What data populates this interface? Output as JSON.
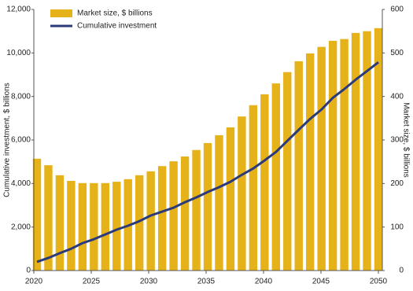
{
  "chart_data": {
    "type": "bar_line",
    "x": [
      2020,
      2021,
      2022,
      2023,
      2024,
      2025,
      2026,
      2027,
      2028,
      2029,
      2030,
      2031,
      2032,
      2033,
      2034,
      2035,
      2036,
      2037,
      2038,
      2039,
      2040,
      2041,
      2042,
      2043,
      2044,
      2045,
      2046,
      2047,
      2048,
      2049,
      2050
    ],
    "series": [
      {
        "name": "Market size, $ billions",
        "type": "bar",
        "axis": "y2",
        "color": "#e6b219",
        "values": [
          257,
          242,
          219,
          206,
          201,
          201,
          201,
          204,
          210,
          219,
          228,
          240,
          251,
          262,
          277,
          293,
          311,
          329,
          354,
          380,
          405,
          430,
          456,
          481,
          499,
          514,
          528,
          532,
          546,
          550,
          557
        ]
      },
      {
        "name": "Cumulative investment",
        "type": "line",
        "axis": "y",
        "color": "#2b3a7a",
        "values": [
          400,
          580,
          800,
          1000,
          1260,
          1440,
          1660,
          1880,
          2060,
          2270,
          2530,
          2710,
          2890,
          3140,
          3360,
          3610,
          3830,
          4080,
          4400,
          4690,
          5060,
          5450,
          5960,
          6470,
          6970,
          7400,
          7940,
          8340,
          8770,
          9170,
          9570
        ]
      }
    ],
    "xlim": [
      2020,
      2050
    ],
    "xticks": [
      2020,
      2025,
      2030,
      2035,
      2040,
      2045,
      2050
    ],
    "ylabel": "Cumulative investment, $ billions",
    "ylim": [
      0,
      12000
    ],
    "yticks": [
      0,
      {
        "value": 2000,
        "label": "2,000"
      },
      {
        "value": 4000,
        "label": "4,000"
      },
      {
        "value": 6000,
        "label": "6,000"
      },
      {
        "value": 8000,
        "label": "8,000"
      },
      {
        "value": 10000,
        "label": "10,000"
      },
      {
        "value": 12000,
        "label": "12,000"
      }
    ],
    "y2label": "Market size, $ billions",
    "y2lim": [
      0,
      600
    ],
    "y2ticks": [
      0,
      100,
      200,
      300,
      400,
      500,
      600
    ],
    "legend": "top-left"
  }
}
